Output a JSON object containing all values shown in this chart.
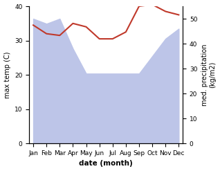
{
  "months": [
    "Jan",
    "Feb",
    "Mar",
    "Apr",
    "May",
    "Jun",
    "Jul",
    "Aug",
    "Sep",
    "Oct",
    "Nov",
    "Dec"
  ],
  "temperature": [
    34.5,
    32.0,
    31.5,
    35.0,
    34.0,
    30.5,
    30.5,
    32.5,
    40.0,
    40.5,
    38.5,
    37.5
  ],
  "precipitation": [
    50.0,
    48.0,
    50.0,
    38.0,
    28.0,
    28.0,
    28.0,
    28.0,
    28.0,
    35.0,
    42.0,
    46.0
  ],
  "temp_color": "#c0392b",
  "precip_fill_color": "#bdc5e8",
  "xlabel": "date (month)",
  "ylabel_left": "max temp (C)",
  "ylabel_right": "med. precipitation\n(kg/m2)",
  "ylim_left": [
    0,
    40
  ],
  "ylim_right": [
    0,
    55
  ],
  "yticks_left": [
    0,
    10,
    20,
    30,
    40
  ],
  "yticks_right": [
    0,
    10,
    20,
    30,
    40,
    50
  ],
  "bg_color": "#ffffff",
  "line_width": 1.5
}
